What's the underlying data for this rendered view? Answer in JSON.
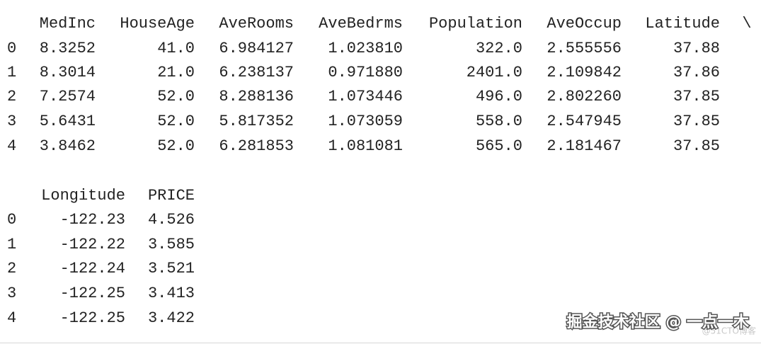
{
  "blocks": [
    {
      "columns": [
        "MedInc",
        "HouseAge",
        "AveRooms",
        "AveBedrms",
        "Population",
        "AveOccup",
        "Latitude"
      ],
      "continuation": "\\",
      "index": [
        "0",
        "1",
        "2",
        "3",
        "4"
      ],
      "rows": [
        [
          "8.3252",
          "41.0",
          "6.984127",
          "1.023810",
          "322.0",
          "2.555556",
          "37.88"
        ],
        [
          "8.3014",
          "21.0",
          "6.238137",
          "0.971880",
          "2401.0",
          "2.109842",
          "37.86"
        ],
        [
          "7.2574",
          "52.0",
          "8.288136",
          "1.073446",
          "496.0",
          "2.802260",
          "37.85"
        ],
        [
          "5.6431",
          "52.0",
          "5.817352",
          "1.073059",
          "558.0",
          "2.547945",
          "37.85"
        ],
        [
          "3.8462",
          "52.0",
          "6.281853",
          "1.081081",
          "565.0",
          "2.181467",
          "37.85"
        ]
      ]
    },
    {
      "columns": [
        "Longitude",
        "PRICE"
      ],
      "index": [
        "0",
        "1",
        "2",
        "3",
        "4"
      ],
      "rows": [
        [
          "-122.23",
          "4.526"
        ],
        [
          "-122.22",
          "3.585"
        ],
        [
          "-122.24",
          "3.521"
        ],
        [
          "-122.25",
          "3.413"
        ],
        [
          "-122.25",
          "3.422"
        ]
      ]
    }
  ],
  "watermark": "掘金技术社区 @ 一点一木",
  "source": "@51CTO博客"
}
